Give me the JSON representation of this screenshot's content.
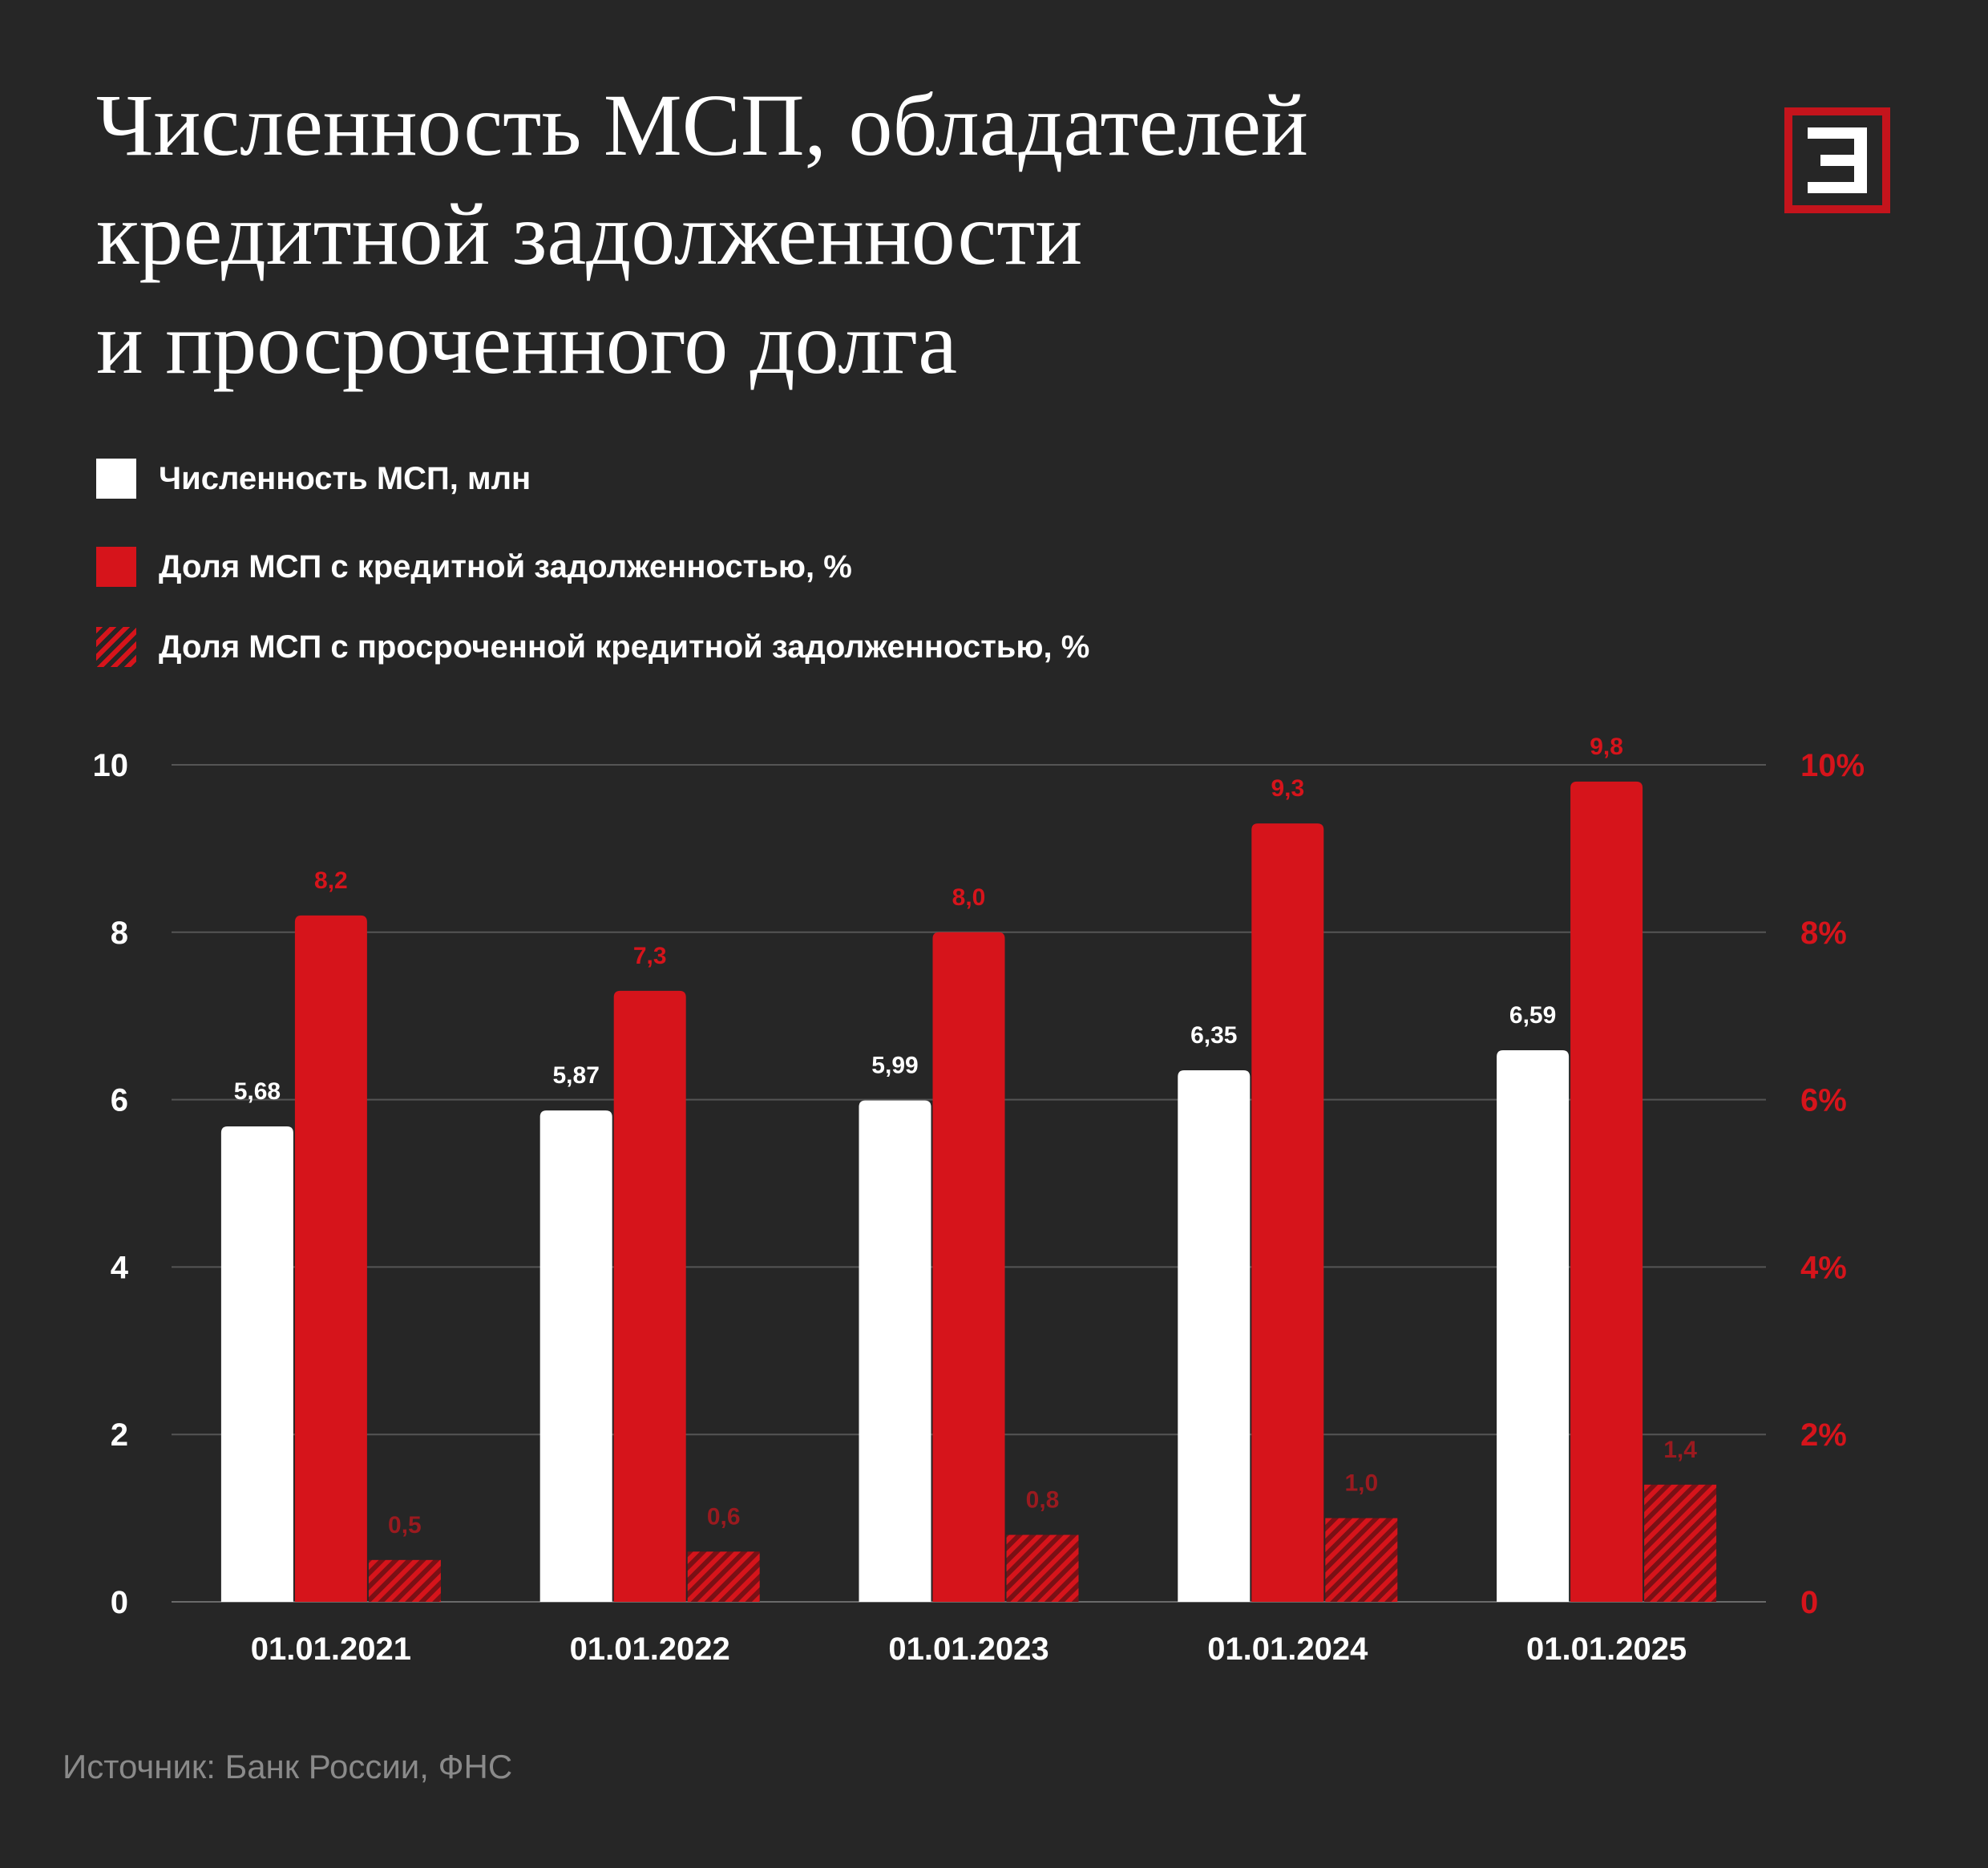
{
  "title_lines": [
    "Численность МСП, обладателей",
    "кредитной задолженности",
    "и просроченного долга"
  ],
  "logo_letter": "Э",
  "colors": {
    "background": "#262626",
    "white": "#ffffff",
    "red": "#d6141b",
    "grid": "#555555",
    "muted": "#8a8a8a"
  },
  "legend": [
    {
      "label": "Численность МСП, млн",
      "style": "white"
    },
    {
      "label": "Доля МСП с кредитной задолженностью, %",
      "style": "red"
    },
    {
      "label": "Доля МСП с просроченной кредитной задолженностью, %",
      "style": "hatch"
    }
  ],
  "source": "Источник: Банк России, ФНС",
  "chart_data": {
    "type": "bar",
    "title": "Численность МСП, обладателей кредитной задолженности и просроченного долга",
    "categories": [
      "01.01.2021",
      "01.01.2022",
      "01.01.2023",
      "01.01.2024",
      "01.01.2025"
    ],
    "series": [
      {
        "name": "Численность МСП, млн",
        "axis": "left",
        "values": [
          5.68,
          5.87,
          5.99,
          6.35,
          6.59
        ],
        "labels": [
          "5,68",
          "5,87",
          "5,99",
          "6,35",
          "6,59"
        ]
      },
      {
        "name": "Доля МСП с кредитной задолженностью, %",
        "axis": "right",
        "values": [
          8.2,
          7.3,
          8.0,
          9.3,
          9.8
        ],
        "labels": [
          "8,2",
          "7,3",
          "8,0",
          "9,3",
          "9,8"
        ]
      },
      {
        "name": "Доля МСП с просроченной кредитной задолженностью, %",
        "axis": "right",
        "values": [
          0.5,
          0.6,
          0.8,
          1.0,
          1.4
        ],
        "labels": [
          "0,5",
          "0,6",
          "0,8",
          "1,0",
          "1,4"
        ]
      }
    ],
    "y_left": {
      "range": [
        0,
        10
      ],
      "ticks": [
        "0",
        "2",
        "4",
        "6",
        "8",
        "10"
      ]
    },
    "y_right": {
      "range": [
        0,
        10
      ],
      "ticks": [
        "0",
        "2%",
        "4%",
        "6%",
        "8%",
        "10%"
      ]
    },
    "grid": true,
    "legend_position": "top-left"
  }
}
